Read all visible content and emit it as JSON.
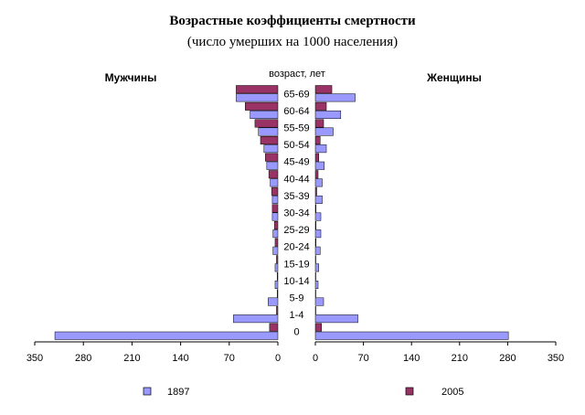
{
  "chart_data": {
    "type": "bar",
    "title": "Возрастные коэффициенты смертности",
    "subtitle": "(число умерших на 1000 населения)",
    "left_label": "Мужчины",
    "right_label": "Женщины",
    "category_axis_title": "возраст, лет",
    "categories": [
      "65-69",
      "60-64",
      "55-59",
      "50-54",
      "45-49",
      "40-44",
      "35-39",
      "30-34",
      "25-29",
      "20-24",
      "15-19",
      "10-14",
      "5-9",
      "1-4",
      "0"
    ],
    "x_ticks_left": [
      "350",
      "280",
      "210",
      "140",
      "70",
      "0"
    ],
    "x_ticks_right": [
      "0",
      "70",
      "140",
      "210",
      "280",
      "350"
    ],
    "xlim": [
      0,
      350
    ],
    "series": [
      {
        "name": "1897",
        "color": "#9999ff",
        "male": [
          60,
          40,
          28,
          20,
          16,
          11,
          8,
          8,
          7,
          7,
          4,
          4,
          14,
          64,
          321
        ],
        "female": [
          58,
          37,
          26,
          16,
          13,
          10,
          10,
          8,
          8,
          7,
          5,
          4,
          12,
          62,
          281
        ]
      },
      {
        "name": "2005",
        "color": "#993366",
        "male": [
          60,
          47,
          33,
          25,
          18,
          13,
          9,
          8,
          5,
          4,
          2,
          1,
          1,
          2,
          12
        ],
        "female": [
          24,
          16,
          12,
          7,
          5,
          4,
          2,
          1,
          1,
          1,
          0.5,
          0.4,
          0.4,
          0.7,
          9
        ]
      }
    ],
    "grid": false,
    "legend_position": "bottom"
  }
}
